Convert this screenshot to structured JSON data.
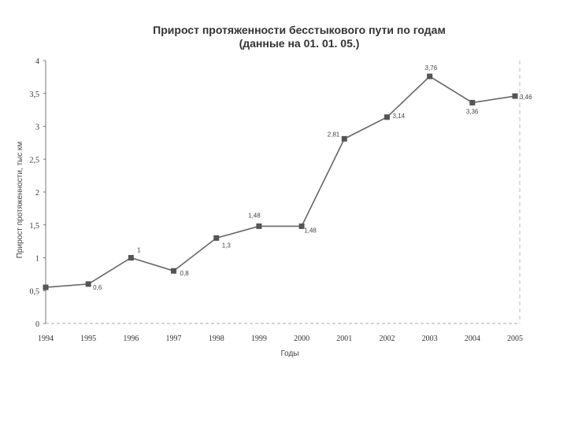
{
  "chart_data": {
    "type": "line",
    "title": "Прирост протяженности бесстыкового пути по годам",
    "subtitle": "(данные на 01. 01. 05.)",
    "xlabel": "Годы",
    "ylabel": "Прирост протяженности, тыс км",
    "categories": [
      "1994",
      "1995",
      "1996",
      "1997",
      "1998",
      "1999",
      "2000",
      "2001",
      "2002",
      "2003",
      "2004",
      "2005"
    ],
    "y_tick_labels": [
      "0",
      "0,5",
      "1",
      "1,5",
      "2",
      "2,5",
      "3",
      "3,5",
      "4"
    ],
    "y_ticks": [
      0,
      0.5,
      1,
      1.5,
      2,
      2.5,
      3,
      3.5,
      4
    ],
    "ylim": [
      0,
      4
    ],
    "grid": false,
    "series": [
      {
        "values": [
          0.55,
          0.6,
          1.0,
          0.8,
          1.3,
          1.48,
          1.48,
          2.81,
          3.14,
          3.76,
          3.36,
          3.46
        ],
        "labels": [
          "",
          "0,6",
          "1",
          "0,8",
          "1,3",
          "1,48",
          "1,48",
          "2,81",
          "3,14",
          "3,76",
          "3,36",
          "3,46"
        ]
      }
    ],
    "line_color": "#666666",
    "marker_color": "#555555"
  }
}
